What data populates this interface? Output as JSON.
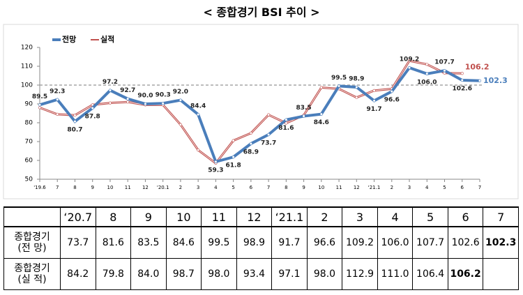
{
  "chart_data": {
    "type": "line",
    "title": "< 종합경기 BSI 추이 >",
    "categories": [
      "'19.6",
      "7",
      "8",
      "9",
      "10",
      "11",
      "12",
      "'20.1",
      "2",
      "3",
      "4",
      "5",
      "6",
      "7",
      "8",
      "9",
      "10",
      "11",
      "12",
      "'21.1",
      "2",
      "3",
      "4",
      "5",
      "6",
      "7"
    ],
    "series": [
      {
        "name": "전망",
        "color": "#4a7ebb",
        "values": [
          89.5,
          92.3,
          80.7,
          87.8,
          97.2,
          92.7,
          90.0,
          90.3,
          92.0,
          84.4,
          59.3,
          61.8,
          68.9,
          73.7,
          81.6,
          83.5,
          84.6,
          99.5,
          98.9,
          91.7,
          96.6,
          109.2,
          106.0,
          107.7,
          102.6,
          102.3
        ],
        "value_labels": [
          "89.5",
          "92.3",
          "80.7",
          "87.8",
          "97.2",
          "92.7",
          "90.0",
          "90.3",
          "92.0",
          "84.4",
          "59.3",
          "61.8",
          "68.9",
          "73.7",
          "81.6",
          "83.5",
          "84.6",
          "99.5",
          "98.9",
          "91.7",
          "96.6",
          "109.2",
          "106.0",
          "107.7",
          "102.6",
          "102.3"
        ]
      },
      {
        "name": "실적",
        "color": "#c0504d",
        "values": [
          88,
          84.5,
          84,
          89.5,
          90.5,
          91,
          89.5,
          89.5,
          79,
          65.5,
          58.5,
          70.5,
          74.5,
          84.2,
          79.8,
          84.0,
          98.7,
          98.0,
          93.4,
          97.1,
          98.0,
          112.9,
          111.0,
          106.4,
          106.2,
          null
        ],
        "value_labels": [
          null,
          null,
          null,
          null,
          null,
          null,
          null,
          null,
          null,
          null,
          null,
          null,
          null,
          null,
          null,
          null,
          null,
          null,
          null,
          null,
          null,
          null,
          null,
          null,
          "106.2",
          null
        ]
      }
    ],
    "ylim": [
      50,
      120
    ],
    "yticks": [
      50,
      60,
      70,
      80,
      90,
      100,
      110,
      120
    ],
    "reference_line": 100
  },
  "table": {
    "header": [
      "‘20.7",
      "8",
      "9",
      "10",
      "11",
      "12",
      "‘21.1",
      "2",
      "3",
      "4",
      "5",
      "6",
      "7"
    ],
    "rows": [
      {
        "label": "종합경기\n(전 망)",
        "values": [
          "73.7",
          "81.6",
          "83.5",
          "84.6",
          "99.5",
          "98.9",
          "91.7",
          "96.6",
          "109.2",
          "106.0",
          "107.7",
          "102.6",
          "102.3"
        ]
      },
      {
        "label": "종합경기\n(실 적)",
        "values": [
          "84.2",
          "79.8",
          "84.0",
          "98.7",
          "98.0",
          "93.4",
          "97.1",
          "98.0",
          "112.9",
          "111.0",
          "106.4",
          "106.2"
        ]
      }
    ]
  }
}
